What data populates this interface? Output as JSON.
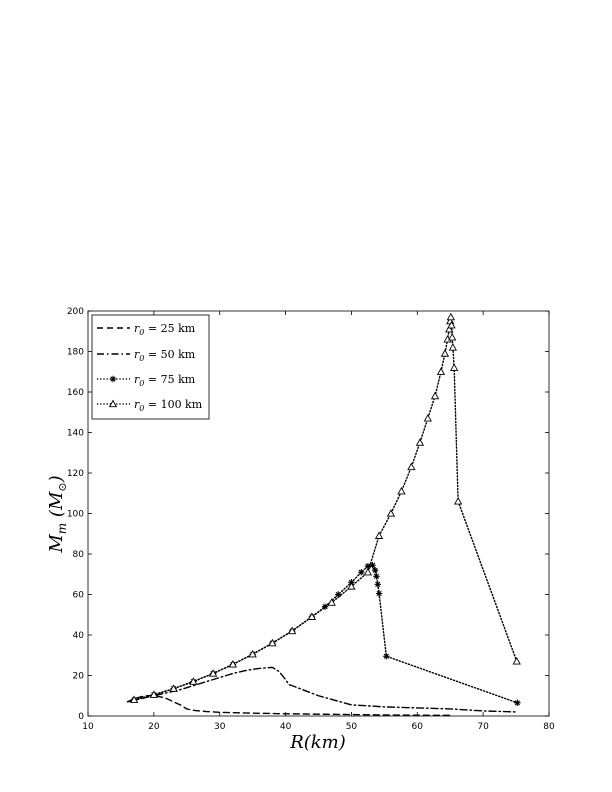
{
  "chart_data": {
    "type": "line",
    "xlabel": "R(km)",
    "ylabel": "M_m (M_⊙)",
    "ylabel_main": "M",
    "ylabel_sub": "m",
    "ylabel_rest": " (M",
    "ylabel_unit_sub": "⊙",
    "ylabel_close": ")",
    "xlim": [
      10,
      80
    ],
    "ylim": [
      0,
      200
    ],
    "xticks": [
      10,
      20,
      30,
      40,
      50,
      60,
      70,
      80
    ],
    "yticks": [
      0,
      20,
      40,
      60,
      80,
      100,
      120,
      140,
      160,
      180,
      200
    ],
    "grid": false,
    "legend_position": "top-left",
    "series": [
      {
        "name": "r0 = 25 km",
        "legend_main": "r",
        "legend_sub": "0",
        "legend_rest": " = 25  km",
        "style": "dashed",
        "marker": "none",
        "x": [
          16,
          17,
          18,
          19,
          20,
          21,
          22,
          23,
          24,
          25,
          26,
          28,
          30,
          35,
          40,
          45,
          50,
          55,
          60,
          65
        ],
        "y": [
          7,
          8.5,
          9.5,
          10,
          10,
          9.5,
          8.5,
          7,
          5.5,
          3.5,
          2.8,
          2.2,
          1.8,
          1.4,
          1.1,
          0.9,
          0.7,
          0.5,
          0.4,
          0.3
        ]
      },
      {
        "name": "r0 = 50 km",
        "legend_main": "r",
        "legend_sub": "0",
        "legend_rest": " = 50  km",
        "style": "dashdot",
        "marker": "none",
        "x": [
          16,
          18,
          20,
          22,
          24,
          26,
          28,
          30,
          32,
          34,
          36,
          38,
          39,
          40,
          40.5,
          41,
          45,
          50,
          55,
          60,
          65,
          70,
          75
        ],
        "y": [
          7,
          8.5,
          10,
          11.5,
          13,
          15,
          17,
          19,
          21,
          22.5,
          23.5,
          24,
          22,
          18,
          15.5,
          15,
          10,
          5.5,
          4.5,
          4,
          3.5,
          2.5,
          2
        ]
      },
      {
        "name": "r0 = 75 km",
        "legend_main": "r",
        "legend_sub": "0",
        "legend_rest": " = 75  km",
        "style": "dotted",
        "marker": "asterisk",
        "x": [
          17,
          20,
          23,
          26,
          29,
          32,
          35,
          38,
          41,
          44,
          46,
          48,
          50,
          51.5,
          52.5,
          53.2,
          53.6,
          53.8,
          54,
          54.2,
          55.3,
          75.2
        ],
        "y": [
          8,
          10.5,
          13.5,
          17,
          21,
          25.5,
          30.5,
          36,
          42,
          49,
          54,
          60,
          66,
          71,
          74,
          74.5,
          72,
          69,
          65,
          60.5,
          29.5,
          6.5
        ]
      },
      {
        "name": "r0 = 100 km",
        "legend_main": "r",
        "legend_sub": "0",
        "legend_rest": " = 100  km",
        "style": "dotted",
        "marker": "triangle",
        "x": [
          17,
          20,
          23,
          26,
          29,
          32,
          35,
          38,
          41,
          44,
          47,
          50,
          52.5,
          54.2,
          56,
          57.6,
          59.1,
          60.4,
          61.6,
          62.7,
          63.6,
          64.2,
          64.6,
          64.85,
          65,
          65.1,
          65.2,
          65.3,
          65.4,
          65.6,
          66.2,
          75.1
        ],
        "y": [
          8,
          10.5,
          13.5,
          17,
          21,
          25.5,
          30.5,
          36,
          42,
          49,
          56,
          64,
          71,
          89,
          100,
          111,
          123,
          135,
          147,
          158,
          170,
          179,
          186,
          191,
          195,
          197,
          193,
          187,
          182,
          172,
          106,
          27
        ]
      }
    ]
  }
}
